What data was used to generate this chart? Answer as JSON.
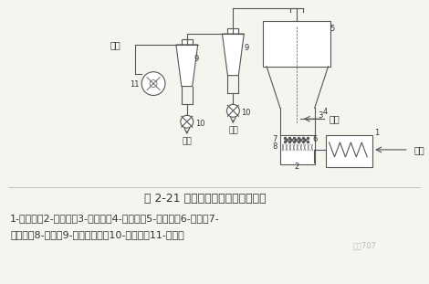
{
  "title": "图 2-21 载体喷雾流化干燥器流程图",
  "caption_line1": "1-加热器；2-进气室；3-进料管；4-干燥室；5-沉降室；6-载体；7-",
  "caption_line2": "检修孔；8-孔板；9-旋风分离器；10-出料阀；11-引风机",
  "bg_color": "#f5f5f0",
  "line_color": "#555555",
  "text_color": "#333333",
  "watermark": "化工707",
  "title_fontsize": 9,
  "caption_fontsize": 8
}
